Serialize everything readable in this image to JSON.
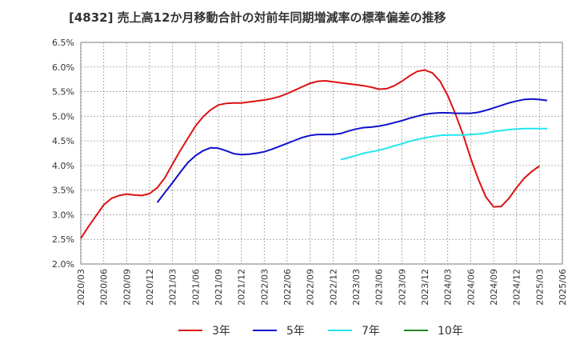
{
  "chart_data": {
    "type": "line",
    "title": "[4832]  売上高12か月移動合計の対前年同期増減率の標準偏差の推移",
    "xlabel": "",
    "ylabel": "",
    "ylim": [
      2.0,
      6.5
    ],
    "yticks": [
      "2.0%",
      "2.5%",
      "3.0%",
      "3.5%",
      "4.0%",
      "4.5%",
      "5.0%",
      "5.5%",
      "6.0%",
      "6.5%"
    ],
    "xticks": [
      "2020/03",
      "2020/06",
      "2020/09",
      "2020/12",
      "2021/03",
      "2021/06",
      "2021/09",
      "2021/12",
      "2022/03",
      "2022/06",
      "2022/09",
      "2022/12",
      "2023/03",
      "2023/06",
      "2023/09",
      "2023/12",
      "2024/03",
      "2024/06",
      "2024/09",
      "2024/12",
      "2025/03",
      "2025/06"
    ],
    "grid": true,
    "legend_position": "bottom",
    "series": [
      {
        "name": "3年",
        "color": "#dd1111",
        "points": [
          [
            "2020/03",
            2.52
          ],
          [
            "2020/04",
            2.76
          ],
          [
            "2020/05",
            2.98
          ],
          [
            "2020/06",
            3.2
          ],
          [
            "2020/07",
            3.33
          ],
          [
            "2020/08",
            3.39
          ],
          [
            "2020/09",
            3.42
          ],
          [
            "2020/10",
            3.4
          ],
          [
            "2020/11",
            3.39
          ],
          [
            "2020/12",
            3.43
          ],
          [
            "2021/01",
            3.55
          ],
          [
            "2021/02",
            3.75
          ],
          [
            "2021/03",
            4.03
          ],
          [
            "2021/04",
            4.3
          ],
          [
            "2021/05",
            4.55
          ],
          [
            "2021/06",
            4.8
          ],
          [
            "2021/07",
            4.99
          ],
          [
            "2021/08",
            5.13
          ],
          [
            "2021/09",
            5.23
          ],
          [
            "2021/10",
            5.26
          ],
          [
            "2021/11",
            5.27
          ],
          [
            "2021/12",
            5.27
          ],
          [
            "2022/01",
            5.29
          ],
          [
            "2022/02",
            5.31
          ],
          [
            "2022/03",
            5.33
          ],
          [
            "2022/04",
            5.36
          ],
          [
            "2022/05",
            5.4
          ],
          [
            "2022/06",
            5.46
          ],
          [
            "2022/07",
            5.53
          ],
          [
            "2022/08",
            5.6
          ],
          [
            "2022/09",
            5.67
          ],
          [
            "2022/10",
            5.71
          ],
          [
            "2022/11",
            5.72
          ],
          [
            "2022/12",
            5.7
          ],
          [
            "2023/01",
            5.68
          ],
          [
            "2023/02",
            5.66
          ],
          [
            "2023/03",
            5.64
          ],
          [
            "2023/04",
            5.62
          ],
          [
            "2023/05",
            5.59
          ],
          [
            "2023/06",
            5.55
          ],
          [
            "2023/07",
            5.56
          ],
          [
            "2023/08",
            5.62
          ],
          [
            "2023/09",
            5.71
          ],
          [
            "2023/10",
            5.82
          ],
          [
            "2023/11",
            5.91
          ],
          [
            "2023/12",
            5.94
          ],
          [
            "2024/01",
            5.88
          ],
          [
            "2024/02",
            5.71
          ],
          [
            "2024/03",
            5.42
          ],
          [
            "2024/04",
            5.05
          ],
          [
            "2024/05",
            4.63
          ],
          [
            "2024/06",
            4.15
          ],
          [
            "2024/07",
            3.72
          ],
          [
            "2024/08",
            3.36
          ],
          [
            "2024/09",
            3.16
          ],
          [
            "2024/10",
            3.17
          ],
          [
            "2024/11",
            3.33
          ],
          [
            "2024/12",
            3.55
          ],
          [
            "2025/01",
            3.74
          ],
          [
            "2025/02",
            3.88
          ],
          [
            "2025/03",
            3.99
          ]
        ]
      },
      {
        "name": "5年",
        "color": "#1111cc",
        "points": [
          [
            "2021/01",
            3.25
          ],
          [
            "2021/02",
            3.45
          ],
          [
            "2021/03",
            3.65
          ],
          [
            "2021/04",
            3.86
          ],
          [
            "2021/05",
            4.06
          ],
          [
            "2021/06",
            4.2
          ],
          [
            "2021/07",
            4.3
          ],
          [
            "2021/08",
            4.36
          ],
          [
            "2021/09",
            4.35
          ],
          [
            "2021/10",
            4.3
          ],
          [
            "2021/11",
            4.24
          ],
          [
            "2021/12",
            4.22
          ],
          [
            "2022/01",
            4.23
          ],
          [
            "2022/02",
            4.25
          ],
          [
            "2022/03",
            4.28
          ],
          [
            "2022/04",
            4.33
          ],
          [
            "2022/05",
            4.39
          ],
          [
            "2022/06",
            4.45
          ],
          [
            "2022/07",
            4.51
          ],
          [
            "2022/08",
            4.57
          ],
          [
            "2022/09",
            4.61
          ],
          [
            "2022/10",
            4.63
          ],
          [
            "2022/11",
            4.63
          ],
          [
            "2022/12",
            4.63
          ],
          [
            "2023/01",
            4.65
          ],
          [
            "2023/02",
            4.7
          ],
          [
            "2023/03",
            4.74
          ],
          [
            "2023/04",
            4.77
          ],
          [
            "2023/05",
            4.78
          ],
          [
            "2023/06",
            4.8
          ],
          [
            "2023/07",
            4.83
          ],
          [
            "2023/08",
            4.87
          ],
          [
            "2023/09",
            4.91
          ],
          [
            "2023/10",
            4.96
          ],
          [
            "2023/11",
            5.0
          ],
          [
            "2023/12",
            5.04
          ],
          [
            "2024/01",
            5.06
          ],
          [
            "2024/02",
            5.07
          ],
          [
            "2024/03",
            5.07
          ],
          [
            "2024/04",
            5.06
          ],
          [
            "2024/05",
            5.06
          ],
          [
            "2024/06",
            5.06
          ],
          [
            "2024/07",
            5.08
          ],
          [
            "2024/08",
            5.12
          ],
          [
            "2024/09",
            5.17
          ],
          [
            "2024/10",
            5.22
          ],
          [
            "2024/11",
            5.27
          ],
          [
            "2024/12",
            5.31
          ],
          [
            "2025/01",
            5.34
          ],
          [
            "2025/02",
            5.35
          ],
          [
            "2025/03",
            5.34
          ],
          [
            "2025/04",
            5.32
          ]
        ]
      },
      {
        "name": "7年",
        "color": "#22e6ee",
        "points": [
          [
            "2023/01",
            4.12
          ],
          [
            "2023/02",
            4.16
          ],
          [
            "2023/03",
            4.2
          ],
          [
            "2023/04",
            4.25
          ],
          [
            "2023/05",
            4.28
          ],
          [
            "2023/06",
            4.31
          ],
          [
            "2023/07",
            4.35
          ],
          [
            "2023/08",
            4.4
          ],
          [
            "2023/09",
            4.44
          ],
          [
            "2023/10",
            4.49
          ],
          [
            "2023/11",
            4.53
          ],
          [
            "2023/12",
            4.56
          ],
          [
            "2024/01",
            4.59
          ],
          [
            "2024/02",
            4.61
          ],
          [
            "2024/03",
            4.62
          ],
          [
            "2024/04",
            4.62
          ],
          [
            "2024/05",
            4.62
          ],
          [
            "2024/06",
            4.63
          ],
          [
            "2024/07",
            4.64
          ],
          [
            "2024/08",
            4.66
          ],
          [
            "2024/09",
            4.69
          ],
          [
            "2024/10",
            4.71
          ],
          [
            "2024/11",
            4.73
          ],
          [
            "2024/12",
            4.74
          ],
          [
            "2025/01",
            4.75
          ],
          [
            "2025/02",
            4.75
          ],
          [
            "2025/03",
            4.75
          ],
          [
            "2025/04",
            4.75
          ]
        ]
      },
      {
        "name": "10年",
        "color": "#228822",
        "points": []
      }
    ]
  }
}
